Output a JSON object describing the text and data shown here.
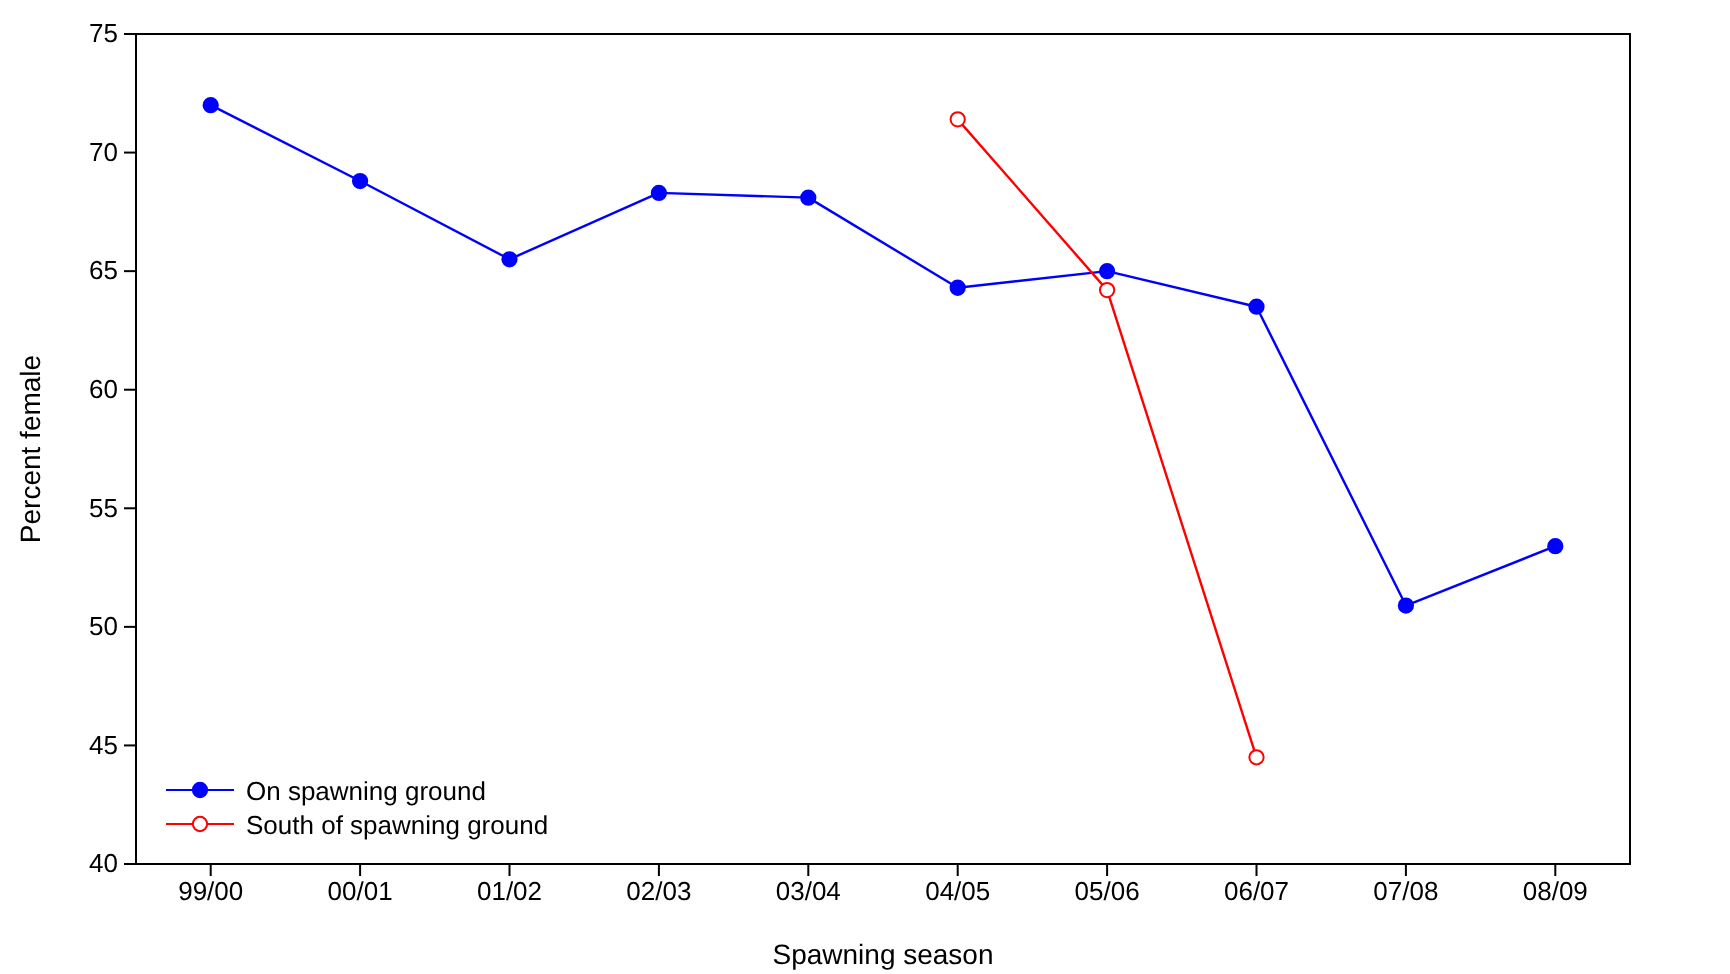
{
  "chart_data": {
    "type": "line",
    "xlabel": "Spawning season",
    "ylabel": "Percent female",
    "categories": [
      "99/00",
      "00/01",
      "01/02",
      "02/03",
      "03/04",
      "04/05",
      "05/06",
      "06/07",
      "07/08",
      "08/09"
    ],
    "series": [
      {
        "name": "On spawning ground",
        "color": "#0000ff",
        "values": [
          72.0,
          68.8,
          65.5,
          68.3,
          68.1,
          64.3,
          65.0,
          63.5,
          50.9,
          53.4
        ]
      },
      {
        "name": "South of spawning ground",
        "color": "#ff0000",
        "values": [
          null,
          null,
          null,
          null,
          null,
          71.4,
          64.2,
          44.5,
          null,
          null
        ]
      }
    ],
    "ylim": [
      40,
      75
    ],
    "yticks": [
      40,
      45,
      50,
      55,
      60,
      65,
      70,
      75
    ],
    "grid": false,
    "legend": "bottom left",
    "marker": "circle",
    "line_style": "solid"
  }
}
